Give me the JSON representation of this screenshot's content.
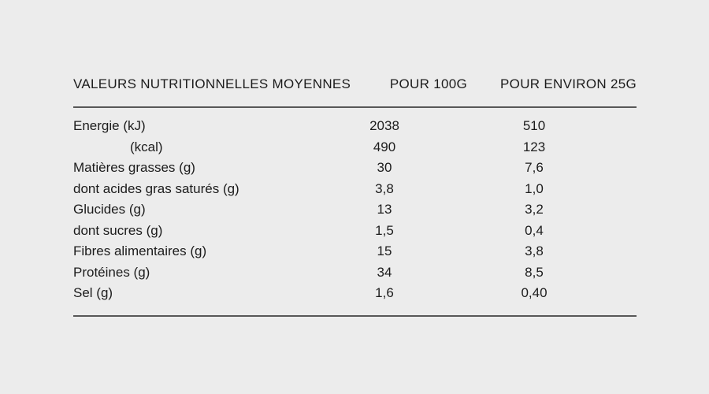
{
  "page": {
    "background_color": "#ececec",
    "text_color": "#1c1c1c",
    "rule_color": "#575757"
  },
  "table": {
    "headers": {
      "label_col": "VALEURS NUTRITIONNELLES MOYENNES",
      "per_100g_col": "POUR 100G",
      "per_25g_col": "POUR ENVIRON 25G"
    },
    "rows": [
      {
        "label": "Energie (kJ)",
        "per_100g": "2038",
        "per_25g": "510"
      },
      {
        "label": "(kcal)",
        "per_100g": "490",
        "per_25g": "123"
      },
      {
        "label": "Matières grasses (g)",
        "per_100g": "30",
        "per_25g": "7,6"
      },
      {
        "label": "dont acides gras saturés (g)",
        "per_100g": "3,8",
        "per_25g": "1,0"
      },
      {
        "label": "Glucides (g)",
        "per_100g": "13",
        "per_25g": "3,2"
      },
      {
        "label": "dont sucres (g)",
        "per_100g": "1,5",
        "per_25g": "0,4"
      },
      {
        "label": "Fibres alimentaires (g)",
        "per_100g": "15",
        "per_25g": "3,8"
      },
      {
        "label": "Protéines (g)",
        "per_100g": "34",
        "per_25g": "8,5"
      },
      {
        "label": "Sel (g)",
        "per_100g": "1,6",
        "per_25g": "0,40"
      }
    ]
  }
}
